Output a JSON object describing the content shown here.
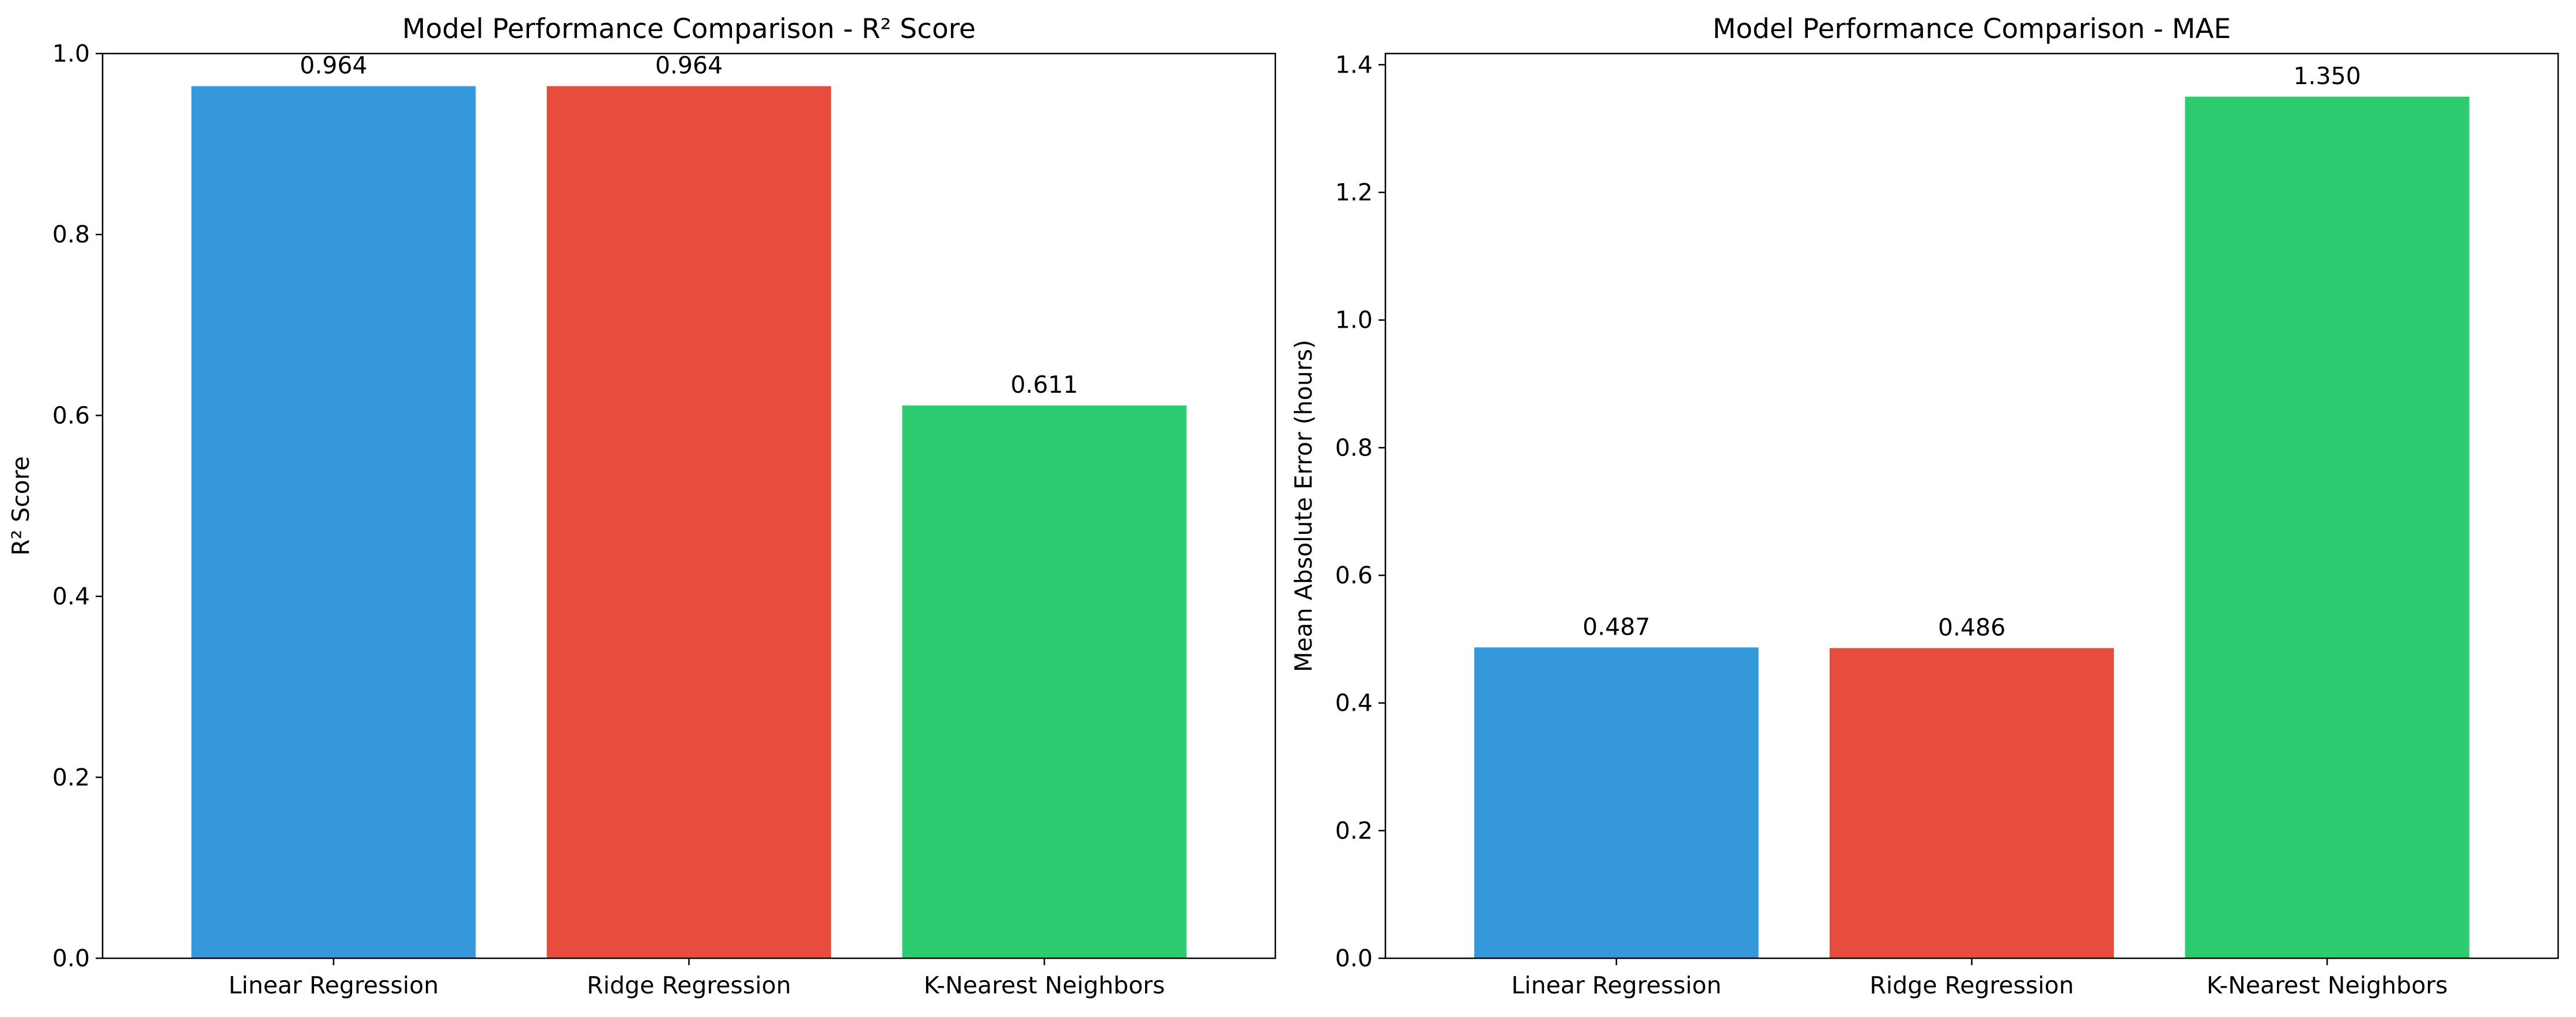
{
  "colors": {
    "blue": "#3498db",
    "red": "#e74c3c",
    "green": "#2ecc71"
  },
  "chart_data": [
    {
      "type": "bar",
      "title": "Model Performance Comparison - R² Score",
      "xlabel": "",
      "ylabel": "R² Score",
      "categories": [
        "Linear Regression",
        "Ridge Regression",
        "K-Nearest Neighbors"
      ],
      "values": [
        0.964,
        0.964,
        0.611
      ],
      "value_labels": [
        "0.964",
        "0.964",
        "0.611"
      ],
      "bar_colors": [
        "#3498db",
        "#e74c3c",
        "#2ecc71"
      ],
      "ylim": [
        0,
        1.0
      ],
      "yticks": [
        0.0,
        0.2,
        0.4,
        0.6,
        0.8,
        1.0
      ],
      "ytick_labels": [
        "0.0",
        "0.2",
        "0.4",
        "0.6",
        "0.8",
        "1.0"
      ],
      "grid": false,
      "legend": "none"
    },
    {
      "type": "bar",
      "title": "Model Performance Comparison - MAE",
      "xlabel": "",
      "ylabel": "Mean Absolute Error (hours)",
      "categories": [
        "Linear Regression",
        "Ridge Regression",
        "K-Nearest Neighbors"
      ],
      "values": [
        0.487,
        0.486,
        1.35
      ],
      "value_labels": [
        "0.487",
        "0.486",
        "1.350"
      ],
      "bar_colors": [
        "#3498db",
        "#e74c3c",
        "#2ecc71"
      ],
      "ylim": [
        0,
        1.4175
      ],
      "yticks": [
        0.0,
        0.2,
        0.4,
        0.6,
        0.8,
        1.0,
        1.2,
        1.4
      ],
      "ytick_labels": [
        "0.0",
        "0.2",
        "0.4",
        "0.6",
        "0.8",
        "1.0",
        "1.2",
        "1.4"
      ],
      "grid": false,
      "legend": "none"
    }
  ]
}
